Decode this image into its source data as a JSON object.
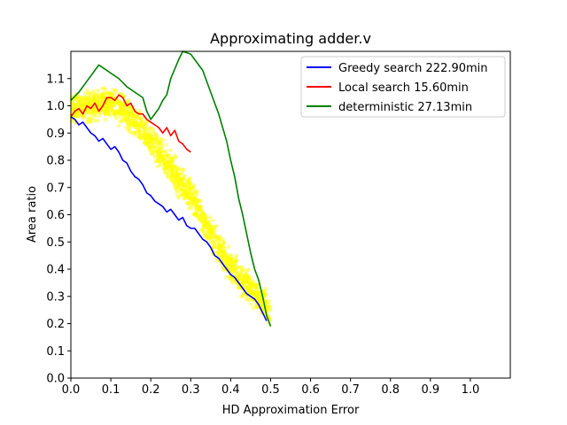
{
  "chart_data": {
    "type": "line",
    "title": "Approximating adder.v",
    "xlabel": "HD Approximation Error",
    "ylabel": "Area ratio",
    "xlim": [
      0.0,
      1.1
    ],
    "ylim": [
      0.0,
      1.2
    ],
    "xticks": [
      "0.0",
      "0.1",
      "0.2",
      "0.3",
      "0.4",
      "0.5",
      "0.6",
      "0.7",
      "0.8",
      "0.9",
      "1.0"
    ],
    "yticks": [
      "0.0",
      "0.1",
      "0.2",
      "0.3",
      "0.4",
      "0.5",
      "0.6",
      "0.7",
      "0.8",
      "0.9",
      "1.0",
      "1.1"
    ],
    "grid": false,
    "legend_position": "top-right",
    "colors": {
      "scatter": "#ffff00",
      "greedy": "#0000ff",
      "local": "#ff0000",
      "deterministic": "#008000"
    },
    "series": [
      {
        "name": "Greedy search 222.90min",
        "color": "#0000ff",
        "points": [
          [
            0.0,
            0.96
          ],
          [
            0.01,
            0.95
          ],
          [
            0.02,
            0.93
          ],
          [
            0.03,
            0.94
          ],
          [
            0.04,
            0.92
          ],
          [
            0.05,
            0.9
          ],
          [
            0.06,
            0.89
          ],
          [
            0.07,
            0.87
          ],
          [
            0.08,
            0.88
          ],
          [
            0.09,
            0.86
          ],
          [
            0.1,
            0.84
          ],
          [
            0.11,
            0.85
          ],
          [
            0.12,
            0.83
          ],
          [
            0.13,
            0.8
          ],
          [
            0.14,
            0.79
          ],
          [
            0.15,
            0.76
          ],
          [
            0.16,
            0.74
          ],
          [
            0.17,
            0.73
          ],
          [
            0.18,
            0.71
          ],
          [
            0.19,
            0.68
          ],
          [
            0.2,
            0.67
          ],
          [
            0.21,
            0.65
          ],
          [
            0.22,
            0.64
          ],
          [
            0.23,
            0.63
          ],
          [
            0.24,
            0.61
          ],
          [
            0.25,
            0.62
          ],
          [
            0.26,
            0.6
          ],
          [
            0.27,
            0.58
          ],
          [
            0.28,
            0.59
          ],
          [
            0.29,
            0.56
          ],
          [
            0.3,
            0.55
          ],
          [
            0.31,
            0.55
          ],
          [
            0.32,
            0.53
          ],
          [
            0.33,
            0.51
          ],
          [
            0.34,
            0.5
          ],
          [
            0.35,
            0.48
          ],
          [
            0.36,
            0.45
          ],
          [
            0.37,
            0.44
          ],
          [
            0.38,
            0.42
          ],
          [
            0.39,
            0.4
          ],
          [
            0.4,
            0.38
          ],
          [
            0.41,
            0.37
          ],
          [
            0.42,
            0.35
          ],
          [
            0.43,
            0.33
          ],
          [
            0.44,
            0.31
          ],
          [
            0.45,
            0.3
          ],
          [
            0.46,
            0.29
          ],
          [
            0.47,
            0.27
          ],
          [
            0.48,
            0.24
          ],
          [
            0.49,
            0.21
          ]
        ]
      },
      {
        "name": "Local search 15.60min",
        "color": "#ff0000",
        "points": [
          [
            0.0,
            0.96
          ],
          [
            0.01,
            0.98
          ],
          [
            0.02,
            0.99
          ],
          [
            0.03,
            0.97
          ],
          [
            0.04,
            1.0
          ],
          [
            0.05,
            0.99
          ],
          [
            0.06,
            1.01
          ],
          [
            0.07,
            0.98
          ],
          [
            0.08,
            1.0
          ],
          [
            0.09,
            1.03
          ],
          [
            0.1,
            1.03
          ],
          [
            0.11,
            1.02
          ],
          [
            0.12,
            1.04
          ],
          [
            0.13,
            1.03
          ],
          [
            0.14,
            1.0
          ],
          [
            0.15,
            1.01
          ],
          [
            0.16,
            0.98
          ],
          [
            0.17,
            0.97
          ],
          [
            0.18,
            0.97
          ],
          [
            0.19,
            0.95
          ],
          [
            0.2,
            0.94
          ],
          [
            0.21,
            0.93
          ],
          [
            0.22,
            0.92
          ],
          [
            0.23,
            0.9
          ],
          [
            0.24,
            0.92
          ],
          [
            0.25,
            0.89
          ],
          [
            0.26,
            0.91
          ],
          [
            0.27,
            0.87
          ],
          [
            0.28,
            0.86
          ],
          [
            0.29,
            0.84
          ],
          [
            0.3,
            0.83
          ]
        ]
      },
      {
        "name": "deterministic 27.13min",
        "color": "#008000",
        "points": [
          [
            0.0,
            1.02
          ],
          [
            0.02,
            1.05
          ],
          [
            0.04,
            1.09
          ],
          [
            0.05,
            1.11
          ],
          [
            0.06,
            1.13
          ],
          [
            0.07,
            1.15
          ],
          [
            0.08,
            1.14
          ],
          [
            0.1,
            1.12
          ],
          [
            0.12,
            1.1
          ],
          [
            0.14,
            1.07
          ],
          [
            0.16,
            1.05
          ],
          [
            0.18,
            1.03
          ],
          [
            0.19,
            0.98
          ],
          [
            0.2,
            0.95
          ],
          [
            0.21,
            0.97
          ],
          [
            0.22,
            0.99
          ],
          [
            0.23,
            1.02
          ],
          [
            0.24,
            1.04
          ],
          [
            0.25,
            1.1
          ],
          [
            0.27,
            1.17
          ],
          [
            0.28,
            1.2
          ],
          [
            0.3,
            1.19
          ],
          [
            0.31,
            1.17
          ],
          [
            0.33,
            1.13
          ],
          [
            0.35,
            1.05
          ],
          [
            0.37,
            0.97
          ],
          [
            0.39,
            0.87
          ],
          [
            0.4,
            0.8
          ],
          [
            0.41,
            0.74
          ],
          [
            0.42,
            0.66
          ],
          [
            0.43,
            0.6
          ],
          [
            0.44,
            0.53
          ],
          [
            0.45,
            0.46
          ],
          [
            0.46,
            0.4
          ],
          [
            0.47,
            0.36
          ],
          [
            0.48,
            0.3
          ],
          [
            0.49,
            0.23
          ],
          [
            0.5,
            0.19
          ]
        ]
      }
    ],
    "scatter": {
      "name": "",
      "color": "#ffff00",
      "band_center": [
        [
          0.0,
          0.99
        ],
        [
          0.1,
          1.01
        ],
        [
          0.15,
          0.96
        ],
        [
          0.2,
          0.87
        ],
        [
          0.25,
          0.77
        ],
        [
          0.3,
          0.67
        ],
        [
          0.35,
          0.53
        ],
        [
          0.4,
          0.41
        ],
        [
          0.45,
          0.33
        ],
        [
          0.5,
          0.24
        ]
      ],
      "band_half_width": 0.05
    }
  }
}
